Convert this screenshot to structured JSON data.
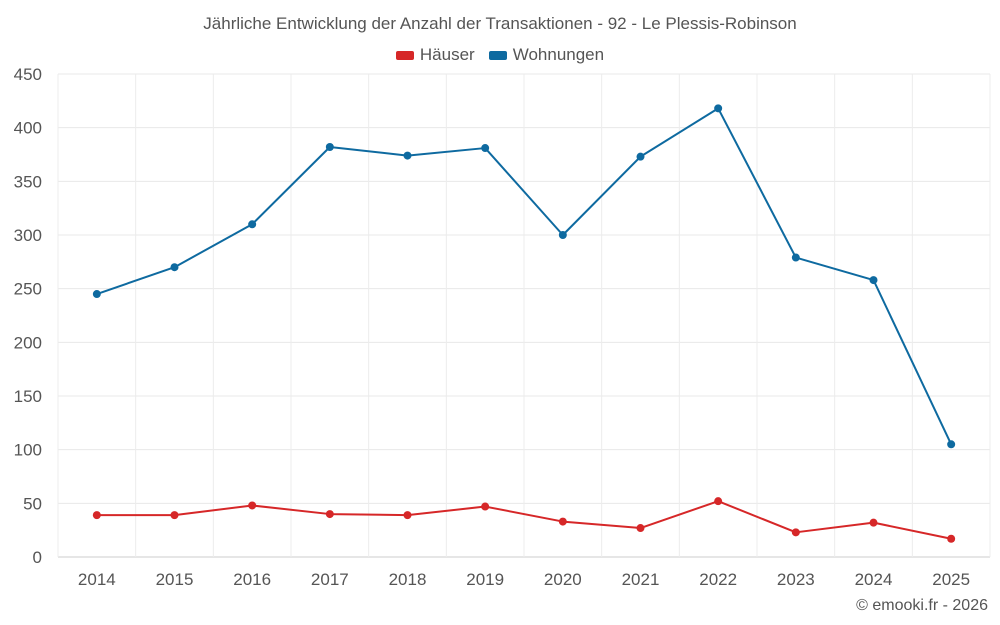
{
  "chart_data": {
    "type": "line",
    "title": "Jährliche Entwicklung der Anzahl der Transaktionen - 92 - Le Plessis-Robinson",
    "xlabel": "",
    "ylabel": "",
    "categories": [
      "2014",
      "2015",
      "2016",
      "2017",
      "2018",
      "2019",
      "2020",
      "2021",
      "2022",
      "2023",
      "2024",
      "2025"
    ],
    "ylim": [
      0,
      450
    ],
    "yticks": [
      0,
      50,
      100,
      150,
      200,
      250,
      300,
      350,
      400,
      450
    ],
    "grid": true,
    "legend_position": "top-center",
    "series": [
      {
        "name": "Häuser",
        "color": "#d62728",
        "values": [
          39,
          39,
          48,
          40,
          39,
          47,
          33,
          27,
          52,
          23,
          32,
          17
        ]
      },
      {
        "name": "Wohnungen",
        "color": "#0e6aa0",
        "values": [
          245,
          270,
          310,
          382,
          374,
          381,
          300,
          373,
          418,
          279,
          258,
          105
        ]
      }
    ]
  },
  "footer": {
    "credit": "© emooki.fr - 2026"
  }
}
